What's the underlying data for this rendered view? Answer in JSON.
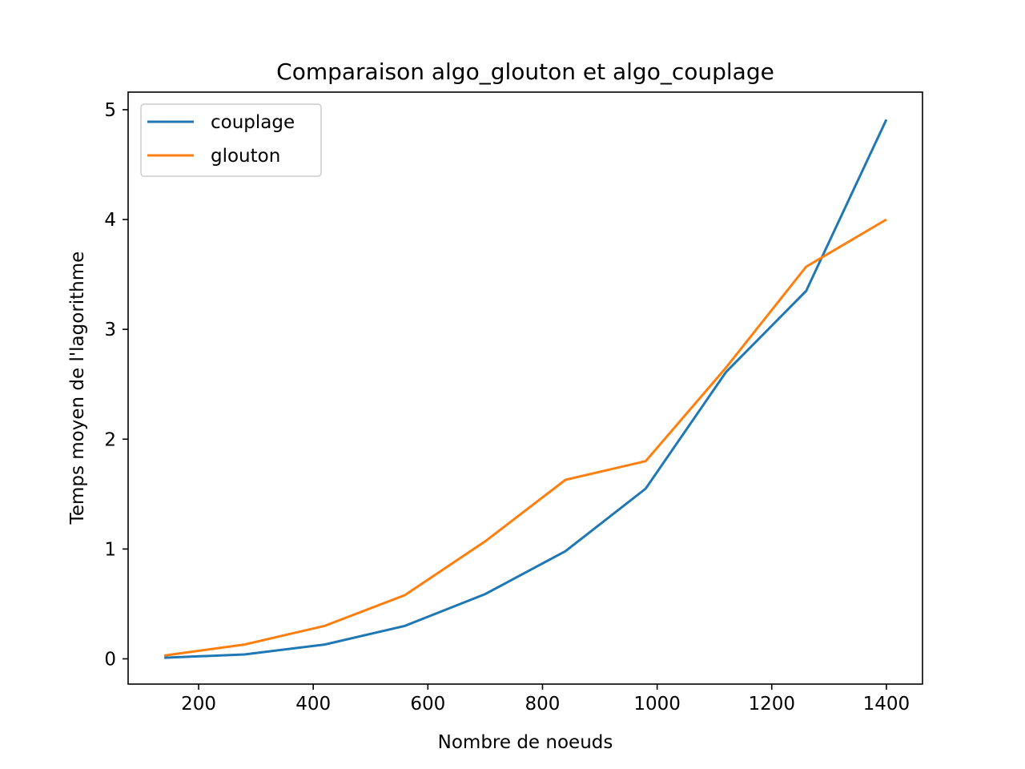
{
  "chart_data": {
    "type": "line",
    "title": "Comparaison algo_glouton et algo_couplage",
    "xlabel": "Nombre de noeuds",
    "ylabel": "Temps moyen de l'lagorithme",
    "xlim": [
      77,
      1463
    ],
    "ylim": [
      -0.23,
      5.16
    ],
    "xticks": [
      200,
      400,
      600,
      800,
      1000,
      1200,
      1400
    ],
    "yticks": [
      0,
      1,
      2,
      3,
      4,
      5
    ],
    "x": [
      140,
      280,
      420,
      560,
      700,
      840,
      980,
      1120,
      1260,
      1400
    ],
    "series": [
      {
        "name": "couplage",
        "color": "#1f77b4",
        "values": [
          0.01,
          0.04,
          0.13,
          0.3,
          0.59,
          0.98,
          1.55,
          2.61,
          3.35,
          4.91
        ]
      },
      {
        "name": "glouton",
        "color": "#ff7f0e",
        "values": [
          0.03,
          0.13,
          0.3,
          0.58,
          1.07,
          1.63,
          1.8,
          2.65,
          3.57,
          4.0
        ]
      }
    ],
    "legend_position": "top-left",
    "grid": false
  }
}
